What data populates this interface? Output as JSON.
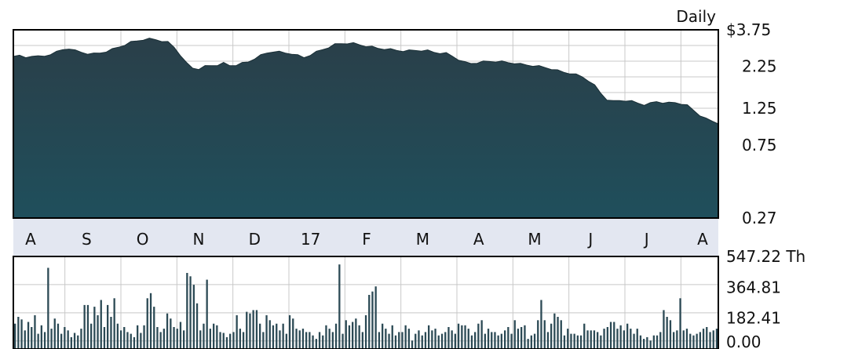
{
  "colors": {
    "price_fill": "#1f4f5c",
    "price_fill_top": "#2a3f49",
    "volume_bar": "#2c4a55",
    "grid": "#c8c8c8",
    "month_band": "#e3e7f1",
    "frame": "#000000",
    "background": "#ffffff"
  },
  "chart_data": [
    {
      "type": "area",
      "title": "Daily",
      "y_scale": "log",
      "ylim": [
        0.27,
        3.75
      ],
      "y_ticks": [
        {
          "value": 3.75,
          "label": "$3.75"
        },
        {
          "value": 2.25,
          "label": "2.25"
        },
        {
          "value": 1.25,
          "label": "1.25"
        },
        {
          "value": 0.75,
          "label": "0.75"
        },
        {
          "value": 0.27,
          "label": "0.27"
        }
      ],
      "grid": true,
      "x_labels": [
        "A",
        "S",
        "O",
        "N",
        "D",
        "17",
        "F",
        "M",
        "A",
        "M",
        "J",
        "J",
        "A"
      ],
      "series": [
        {
          "values": [
            2.62,
            2.6,
            2.55,
            2.62,
            2.58,
            2.6,
            2.68,
            2.75,
            2.85,
            2.9,
            2.8,
            2.75,
            2.7,
            2.68,
            2.72,
            2.78,
            2.85,
            2.95,
            3.05,
            3.15,
            3.22,
            3.28,
            3.3,
            3.28,
            3.22,
            3.15,
            2.95,
            2.65,
            2.35,
            2.2,
            2.18,
            2.25,
            2.28,
            2.3,
            2.35,
            2.28,
            2.3,
            2.35,
            2.4,
            2.52,
            2.62,
            2.72,
            2.78,
            2.75,
            2.72,
            2.7,
            2.62,
            2.55,
            2.65,
            2.75,
            2.85,
            2.95,
            3.05,
            3.1,
            3.12,
            3.1,
            3.05,
            3.0,
            2.95,
            2.9,
            2.88,
            2.85,
            2.82,
            2.8,
            2.8,
            2.82,
            2.82,
            2.8,
            2.75,
            2.72,
            2.7,
            2.6,
            2.48,
            2.38,
            2.35,
            2.38,
            2.4,
            2.42,
            2.42,
            2.4,
            2.38,
            2.36,
            2.32,
            2.3,
            2.28,
            2.25,
            2.22,
            2.18,
            2.12,
            2.08,
            2.05,
            2.0,
            1.95,
            1.85,
            1.72,
            1.55,
            1.42,
            1.38,
            1.4,
            1.4,
            1.38,
            1.35,
            1.32,
            1.34,
            1.38,
            1.36,
            1.35,
            1.36,
            1.34,
            1.3,
            1.22,
            1.14,
            1.08,
            1.05,
            1.02
          ]
        }
      ]
    },
    {
      "type": "bar",
      "ylabel": "Th",
      "ylim": [
        0,
        547.22
      ],
      "y_ticks": [
        {
          "value": 547.22,
          "label": "547.22 Th"
        },
        {
          "value": 364.81,
          "label": "364.81"
        },
        {
          "value": 182.41,
          "label": "182.41"
        },
        {
          "value": 0.0,
          "label": "0.00"
        }
      ],
      "grid": true,
      "series": [
        {
          "values": [
            150,
            190,
            175,
            110,
            160,
            130,
            200,
            90,
            140,
            100,
            480,
            120,
            180,
            150,
            90,
            130,
            110,
            70,
            95,
            80,
            120,
            260,
            260,
            150,
            250,
            200,
            290,
            130,
            260,
            190,
            300,
            150,
            110,
            130,
            100,
            90,
            70,
            140,
            95,
            140,
            300,
            330,
            250,
            130,
            100,
            120,
            210,
            180,
            130,
            120,
            160,
            110,
            450,
            430,
            380,
            270,
            110,
            150,
            410,
            120,
            150,
            140,
            100,
            95,
            70,
            90,
            100,
            200,
            120,
            100,
            220,
            210,
            230,
            230,
            150,
            100,
            200,
            170,
            140,
            150,
            110,
            150,
            90,
            200,
            180,
            120,
            110,
            120,
            100,
            100,
            80,
            60,
            100,
            80,
            140,
            120,
            100,
            150,
            500,
            90,
            170,
            140,
            160,
            180,
            140,
            100,
            200,
            320,
            340,
            370,
            100,
            150,
            120,
            90,
            140,
            80,
            100,
            100,
            140,
            120,
            50,
            90,
            110,
            80,
            100,
            140,
            110,
            120,
            80,
            90,
            100,
            130,
            110,
            90,
            150,
            140,
            140,
            120,
            80,
            100,
            150,
            170,
            90,
            120,
            100,
            100,
            80,
            90,
            110,
            130,
            90,
            170,
            120,
            130,
            140,
            60,
            80,
            90,
            170,
            290,
            170,
            100,
            150,
            210,
            190,
            170,
            80,
            120,
            90,
            90,
            80,
            80,
            150,
            110,
            110,
            110,
            100,
            80,
            120,
            130,
            160,
            160,
            120,
            140,
            110,
            150,
            120,
            90,
            120,
            80,
            60,
            70,
            50,
            80,
            80,
            100,
            230,
            190,
            170,
            100,
            110,
            300,
            110,
            120,
            90,
            80,
            90,
            100,
            120,
            130,
            100,
            110,
            120
          ]
        }
      ]
    }
  ]
}
